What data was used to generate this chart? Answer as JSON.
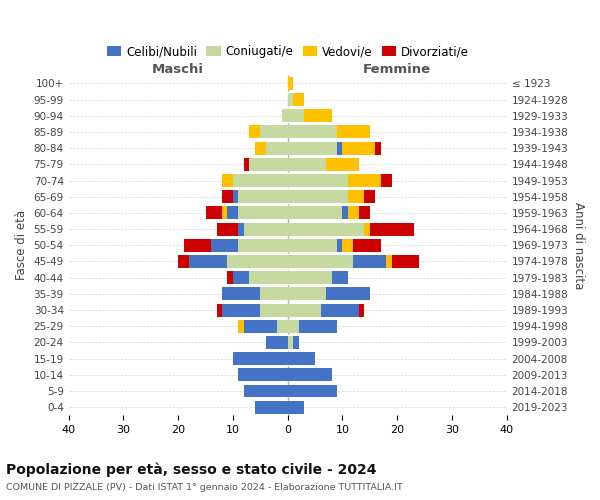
{
  "age_groups": [
    "0-4",
    "5-9",
    "10-14",
    "15-19",
    "20-24",
    "25-29",
    "30-34",
    "35-39",
    "40-44",
    "45-49",
    "50-54",
    "55-59",
    "60-64",
    "65-69",
    "70-74",
    "75-79",
    "80-84",
    "85-89",
    "90-94",
    "95-99",
    "100+"
  ],
  "birth_years": [
    "2019-2023",
    "2014-2018",
    "2009-2013",
    "2004-2008",
    "1999-2003",
    "1994-1998",
    "1989-1993",
    "1984-1988",
    "1979-1983",
    "1974-1978",
    "1969-1973",
    "1964-1968",
    "1959-1963",
    "1954-1958",
    "1949-1953",
    "1944-1948",
    "1939-1943",
    "1934-1938",
    "1929-1933",
    "1924-1928",
    "≤ 1923"
  ],
  "colors": {
    "celibi": "#4472c4",
    "coniugati": "#c5d9a0",
    "vedovi": "#ffc000",
    "divorziati": "#cc0000"
  },
  "maschi": {
    "celibi": [
      6,
      8,
      9,
      10,
      4,
      6,
      7,
      7,
      3,
      7,
      5,
      1,
      2,
      1,
      0,
      0,
      0,
      0,
      0,
      0,
      0
    ],
    "coniugati": [
      0,
      0,
      0,
      0,
      0,
      2,
      5,
      5,
      7,
      11,
      9,
      8,
      9,
      9,
      10,
      7,
      4,
      5,
      1,
      0,
      0
    ],
    "vedovi": [
      0,
      0,
      0,
      0,
      0,
      1,
      0,
      0,
      0,
      0,
      0,
      0,
      1,
      0,
      2,
      0,
      2,
      2,
      0,
      0,
      0
    ],
    "divorziati": [
      0,
      0,
      0,
      0,
      0,
      0,
      1,
      0,
      1,
      2,
      5,
      4,
      3,
      2,
      0,
      1,
      0,
      0,
      0,
      0,
      0
    ]
  },
  "femmine": {
    "celibi": [
      3,
      9,
      8,
      5,
      1,
      7,
      7,
      8,
      3,
      6,
      1,
      0,
      1,
      0,
      0,
      0,
      1,
      0,
      0,
      0,
      0
    ],
    "coniugati": [
      0,
      0,
      0,
      0,
      1,
      2,
      6,
      7,
      8,
      12,
      9,
      14,
      10,
      11,
      11,
      7,
      9,
      9,
      3,
      1,
      0
    ],
    "vedovi": [
      0,
      0,
      0,
      0,
      0,
      0,
      0,
      0,
      0,
      1,
      2,
      1,
      2,
      3,
      6,
      6,
      6,
      6,
      5,
      2,
      1
    ],
    "divorziati": [
      0,
      0,
      0,
      0,
      0,
      0,
      1,
      0,
      0,
      5,
      5,
      8,
      2,
      2,
      2,
      0,
      1,
      0,
      0,
      0,
      0
    ]
  },
  "xlim": 40,
  "title": "Popolazione per età, sesso e stato civile - 2024",
  "subtitle": "COMUNE DI PIZZALE (PV) - Dati ISTAT 1° gennaio 2024 - Elaborazione TUTTITALIA.IT",
  "ylabel_left": "Fasce di età",
  "ylabel_right": "Anni di nascita",
  "xlabel_maschi": "Maschi",
  "xlabel_femmine": "Femmine",
  "legend_labels": [
    "Celibi/Nubili",
    "Coniugati/e",
    "Vedovi/e",
    "Divorziati/e"
  ],
  "background": "#ffffff",
  "grid_color": "#cccccc"
}
